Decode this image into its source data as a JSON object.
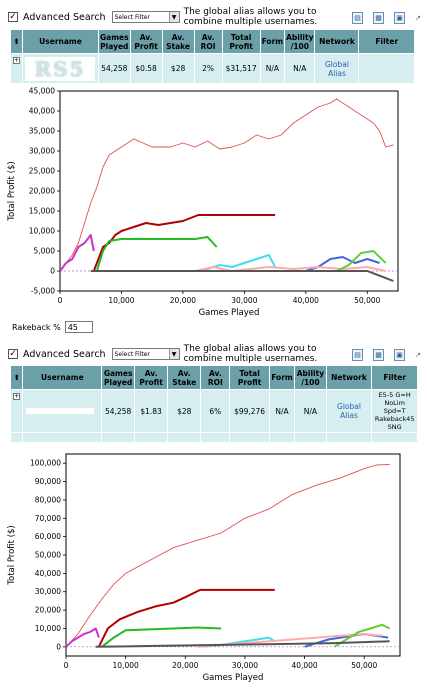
{
  "panel1": {
    "advanced_search_label": "Advanced Search",
    "filter_select_value": "Select Filter",
    "hint_text": "The global alias allows you to combine multiple usernames.",
    "columns": [
      "Username",
      "Games Played",
      "Av. Profit",
      "Av. Stake",
      "Av. ROI",
      "Total Profit",
      "Form",
      "Ability /100",
      "Network",
      "Filter"
    ],
    "row": {
      "username_logo": "RS5",
      "games_played": "54,258",
      "av_profit": "$0.58",
      "av_stake": "$28",
      "av_roi": "2%",
      "total_profit": "$31,517",
      "form": "N/A",
      "ability": "N/A",
      "network": "Global Alias",
      "filter": ""
    }
  },
  "rakeback": {
    "label": "Rakeback %",
    "value": "45"
  },
  "panel2": {
    "advanced_search_label": "Advanced Search",
    "filter_select_value": "Select Filter",
    "hint_text": "The global alias allows you to combine multiple usernames.",
    "columns": [
      "Username",
      "Games Played",
      "Av. Profit",
      "Av. Stake",
      "Av. ROI",
      "Total Profit",
      "Form",
      "Ability /100",
      "Network",
      "Filter"
    ],
    "row": {
      "username": "",
      "games_played": "54,258",
      "av_profit": "$1.83",
      "av_stake": "$28",
      "av_roi": "6%",
      "total_profit": "$99,276",
      "form": "N/A",
      "ability": "N/A",
      "network": "Global Alias",
      "filter": "E5-5 G=H NoLim Spd=T Rakeback45 SNG"
    }
  },
  "icons": [
    "export-icon",
    "calendar-icon",
    "spreadsheet-icon",
    "popout-icon"
  ],
  "chart_data": [
    {
      "type": "line",
      "title": "",
      "xlabel": "Games Played",
      "ylabel": "Total Profit ($)",
      "xlim": [
        0,
        55000
      ],
      "ylim": [
        -5000,
        45000
      ],
      "x_ticks": [
        "0",
        "10,000",
        "20,000",
        "30,000",
        "40,000",
        "50,000"
      ],
      "y_ticks": [
        "-5,000",
        "0",
        "5,000",
        "10,000",
        "15,000",
        "20,000",
        "25,000",
        "30,000",
        "35,000",
        "40,000",
        "45,000"
      ],
      "series": [
        {
          "color": "#e05050",
          "x": [
            0,
            1000,
            2000,
            3000,
            4000,
            5000,
            6000,
            7000,
            8000,
            9000,
            10000,
            12000,
            15000,
            18000,
            20000,
            22000,
            24000,
            26000,
            28000,
            30000,
            32000,
            34000,
            36000,
            38000,
            40000,
            42000,
            44000,
            45000,
            47000,
            49000,
            50000,
            51000,
            52000,
            53000,
            54258
          ],
          "y": [
            0,
            2000,
            4000,
            7000,
            12000,
            17000,
            21000,
            26000,
            29000,
            30000,
            31000,
            33000,
            31000,
            31000,
            32000,
            31000,
            32500,
            30500,
            31000,
            32000,
            34000,
            33000,
            34000,
            37000,
            39000,
            41000,
            42000,
            43000,
            41000,
            39000,
            38000,
            37000,
            35000,
            31000,
            31517
          ]
        },
        {
          "color": "#b00000",
          "x": [
            5500,
            6000,
            7000,
            8000,
            9000,
            10000,
            12000,
            14000,
            16000,
            18000,
            20000,
            22500,
            35000
          ],
          "y": [
            0,
            2000,
            6000,
            7000,
            9000,
            10000,
            11000,
            12000,
            11500,
            12000,
            12500,
            14000,
            14000
          ]
        },
        {
          "color": "#22bb22",
          "x": [
            6000,
            7000,
            8000,
            10000,
            14000,
            18000,
            22000,
            24000,
            25500
          ],
          "y": [
            0,
            5000,
            7500,
            8000,
            8000,
            8000,
            8000,
            8500,
            6000
          ]
        },
        {
          "color": "#cc33cc",
          "x": [
            0,
            1000,
            2000,
            3000,
            4000,
            5000,
            5500
          ],
          "y": [
            0,
            2000,
            3000,
            6000,
            7000,
            9000,
            5000
          ]
        },
        {
          "color": "#44ddee",
          "x": [
            23000,
            26000,
            28000,
            30000,
            32000,
            34000,
            35000
          ],
          "y": [
            0,
            1500,
            1000,
            2000,
            3000,
            4000,
            1000
          ]
        },
        {
          "color": "#4466dd",
          "x": [
            40000,
            42000,
            44000,
            46000,
            48000,
            50000,
            52000
          ],
          "y": [
            0,
            1000,
            3000,
            3500,
            2000,
            3000,
            2000
          ]
        },
        {
          "color": "#ffaaaa",
          "x": [
            22000,
            25000,
            28000,
            31000,
            34000,
            38000,
            42000,
            46000,
            50000,
            53000
          ],
          "y": [
            0,
            1000,
            0,
            500,
            1000,
            500,
            1000,
            500,
            1000,
            0
          ]
        },
        {
          "color": "#66cc33",
          "x": [
            45000,
            47000,
            49000,
            51000,
            53000
          ],
          "y": [
            0,
            1500,
            4500,
            5000,
            2000
          ]
        },
        {
          "color": "#555555",
          "x": [
            5000,
            10000,
            20000,
            30000,
            40000,
            50000,
            54258
          ],
          "y": [
            0,
            0,
            0,
            0,
            0,
            0,
            -2500
          ]
        }
      ]
    },
    {
      "type": "line",
      "title": "",
      "xlabel": "Games Played",
      "ylabel": "Total Profit ($)",
      "xlim": [
        0,
        56000
      ],
      "ylim": [
        -5000,
        105000
      ],
      "x_ticks": [
        "0",
        "10,000",
        "20,000",
        "30,000",
        "40,000",
        "50,000"
      ],
      "y_ticks": [
        "0",
        "10,000",
        "20,000",
        "30,000",
        "40,000",
        "50,000",
        "60,000",
        "70,000",
        "80,000",
        "90,000",
        "100,000"
      ],
      "series": [
        {
          "color": "#e05050",
          "x": [
            0,
            2000,
            4000,
            6000,
            8000,
            10000,
            14000,
            18000,
            22000,
            26000,
            30000,
            34000,
            38000,
            42000,
            46000,
            50000,
            52000,
            54258
          ],
          "y": [
            0,
            7000,
            17000,
            26000,
            34000,
            40000,
            47000,
            54000,
            58000,
            62000,
            70000,
            75000,
            83000,
            88000,
            92000,
            97000,
            99000,
            99276
          ]
        },
        {
          "color": "#b00000",
          "x": [
            5500,
            7000,
            9000,
            12000,
            15000,
            18000,
            20000,
            22500,
            35000
          ],
          "y": [
            0,
            10000,
            15000,
            19000,
            22000,
            24000,
            27000,
            31000,
            31000
          ]
        },
        {
          "color": "#22bb22",
          "x": [
            6000,
            8000,
            10000,
            14000,
            18000,
            22000,
            26000
          ],
          "y": [
            0,
            5000,
            9000,
            9500,
            10000,
            10500,
            10000
          ]
        },
        {
          "color": "#cc33cc",
          "x": [
            0,
            1000,
            2000,
            3000,
            4000,
            5000,
            5500
          ],
          "y": [
            0,
            3000,
            5000,
            7000,
            8000,
            10000,
            5000
          ]
        },
        {
          "color": "#44ddee",
          "x": [
            23000,
            26000,
            28000,
            30000,
            32000,
            34000,
            35000
          ],
          "y": [
            0,
            1000,
            2000,
            3000,
            4000,
            5000,
            3000
          ]
        },
        {
          "color": "#4466dd",
          "x": [
            40000,
            42000,
            44000,
            46000,
            48000,
            50000,
            52000,
            54000
          ],
          "y": [
            0,
            2000,
            4000,
            5000,
            6000,
            7000,
            6000,
            5000
          ]
        },
        {
          "color": "#ffaaaa",
          "x": [
            22000,
            26000,
            30000,
            34000,
            38000,
            42000,
            46000,
            50000,
            53000
          ],
          "y": [
            0,
            1000,
            2000,
            3000,
            4000,
            5000,
            6000,
            7000,
            6000
          ]
        },
        {
          "color": "#66cc33",
          "x": [
            45000,
            47000,
            49000,
            51000,
            53000,
            54258
          ],
          "y": [
            0,
            4000,
            8000,
            10000,
            12000,
            10000
          ]
        },
        {
          "color": "#555555",
          "x": [
            5000,
            15000,
            25000,
            35000,
            45000,
            54258
          ],
          "y": [
            0,
            500,
            1000,
            1500,
            2000,
            3000
          ]
        }
      ]
    }
  ]
}
